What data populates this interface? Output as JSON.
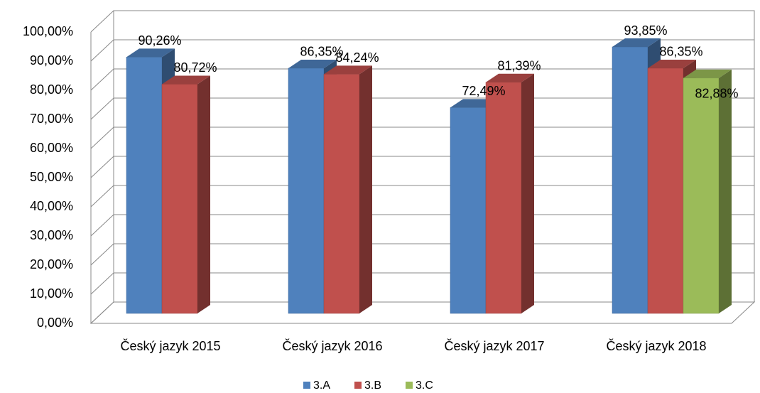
{
  "chart_data": {
    "type": "bar3d",
    "categories": [
      "Český jazyk 2015",
      "Český jazyk 2016",
      "Český jazyk 2017",
      "Český jazyk 2018"
    ],
    "series": [
      {
        "name": "3.A",
        "color": "#4f81bd",
        "values": [
          90.26,
          86.35,
          72.49,
          93.85
        ],
        "value_labels": [
          "90,26%",
          "86,35%",
          "72,49%",
          "93,85%"
        ]
      },
      {
        "name": "3.B",
        "color": "#c0504d",
        "values": [
          80.72,
          84.24,
          81.39,
          86.35
        ],
        "value_labels": [
          "80,72%",
          "84,24%",
          "81,39%",
          "86,35%"
        ]
      },
      {
        "name": "3.C",
        "color": "#9bbb59",
        "values": [
          null,
          null,
          null,
          82.88
        ],
        "value_labels": [
          null,
          null,
          null,
          "82,88%"
        ]
      }
    ],
    "ylim": [
      0,
      100
    ],
    "yticks": [
      {
        "value": 0,
        "label": "0,00%"
      },
      {
        "value": 10,
        "label": "10,00%"
      },
      {
        "value": 20,
        "label": "20,00%"
      },
      {
        "value": 30,
        "label": "30,00%"
      },
      {
        "value": 40,
        "label": "40,00%"
      },
      {
        "value": 50,
        "label": "50,00%"
      },
      {
        "value": 60,
        "label": "60,00%"
      },
      {
        "value": 70,
        "label": "70,00%"
      },
      {
        "value": 80,
        "label": "80,00%"
      },
      {
        "value": 90,
        "label": "90,00%"
      },
      {
        "value": 100,
        "label": "100,00%"
      }
    ],
    "grid": true,
    "legend": "bottom"
  }
}
